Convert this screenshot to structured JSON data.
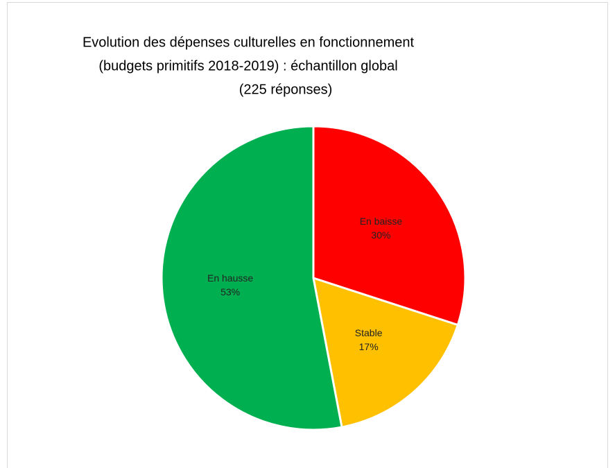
{
  "chart_data": {
    "type": "pie",
    "title": [
      "Evolution des dépenses culturelles en fonctionnement",
      "(budgets primitifs 2018-2019) : échantillon global",
      "(225 réponses)"
    ],
    "categories": [
      "En baisse",
      "Stable",
      "En hausse"
    ],
    "values": [
      30,
      17,
      53
    ],
    "value_labels": [
      "30%",
      "17%",
      "53%"
    ],
    "colors": [
      "#ff0000",
      "#ffc000",
      "#00b050"
    ]
  }
}
